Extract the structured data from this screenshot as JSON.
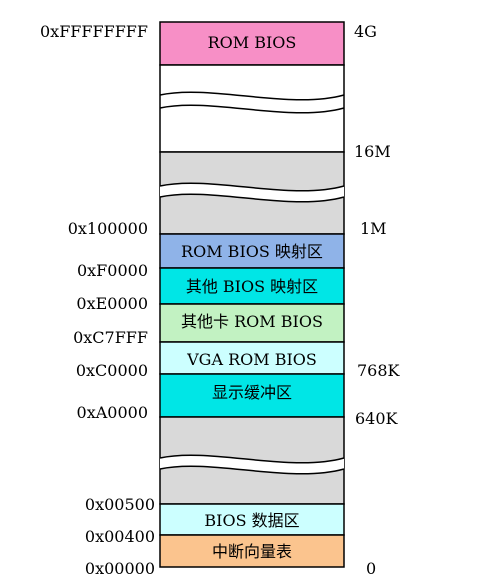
{
  "regions": [
    {
      "key": "rom_bios_top",
      "label": "ROM BIOS",
      "color": "#f78fc6"
    },
    {
      "key": "gap_high",
      "label": "",
      "color": "#ffffff"
    },
    {
      "key": "gap_mid",
      "label": "",
      "color": "#d9d9d9"
    },
    {
      "key": "rom_bios_map",
      "label": "ROM BIOS 映射区",
      "color": "#8fb3e8"
    },
    {
      "key": "other_bios_map",
      "label": "其他 BIOS 映射区",
      "color": "#00e6e6"
    },
    {
      "key": "other_card_rom",
      "label": "其他卡 ROM BIOS",
      "color": "#c2f2c2"
    },
    {
      "key": "vga_rom_bios",
      "label": "VGA ROM BIOS",
      "color": "#ccffff"
    },
    {
      "key": "display_buffer",
      "label": "显示缓冲区",
      "color": "#00e6e6"
    },
    {
      "key": "gap_low",
      "label": "",
      "color": "#d9d9d9"
    },
    {
      "key": "bios_data",
      "label": "BIOS 数据区",
      "color": "#ccffff"
    },
    {
      "key": "ivt",
      "label": "中断向量表",
      "color": "#fbc48e"
    }
  ],
  "addresses": {
    "top": "0xFFFFFFFF",
    "a100000": "0x100000",
    "aF0000": "0xF0000",
    "aE0000": "0xE0000",
    "aC7FFF": "0xC7FFF",
    "aC0000": "0xC0000",
    "aA0000": "0xA0000",
    "a00500": "0x00500",
    "a00400": "0x00400",
    "a00000": "0x00000"
  },
  "sizes": {
    "s4G": "4G",
    "s16M": "16M",
    "s1M": "1M",
    "s768K": "768K",
    "s640K": "640K",
    "s0": "0"
  }
}
